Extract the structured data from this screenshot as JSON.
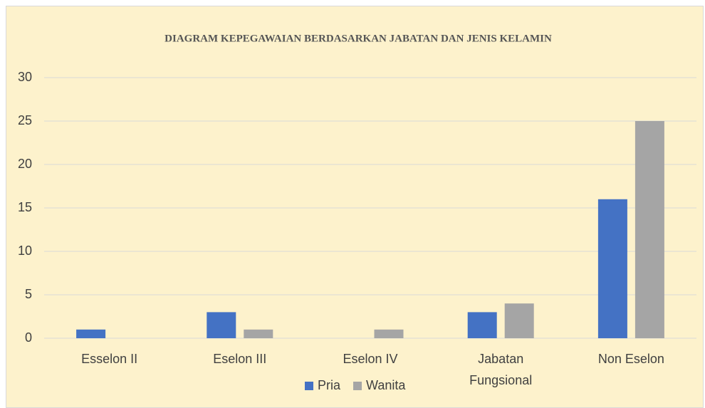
{
  "chart_data": {
    "type": "bar",
    "title": "DIAGRAM KEPEGAWAIAN BERDASARKAN JABATAN DAN JENIS KELAMIN",
    "categories": [
      "Esselon II",
      "Eselon III",
      "Eselon IV",
      "Jabatan Fungsional",
      "Non Eselon"
    ],
    "series": [
      {
        "name": "Pria",
        "color": "#4472c4",
        "values": [
          1,
          3,
          0,
          3,
          16
        ]
      },
      {
        "name": "Wanita",
        "color": "#a5a5a5",
        "values": [
          0,
          1,
          1,
          4,
          25
        ]
      }
    ],
    "ylim": [
      0,
      30
    ],
    "yticks": [
      0,
      5,
      10,
      15,
      20,
      25,
      30
    ],
    "grid": true,
    "legend": "bottom"
  }
}
